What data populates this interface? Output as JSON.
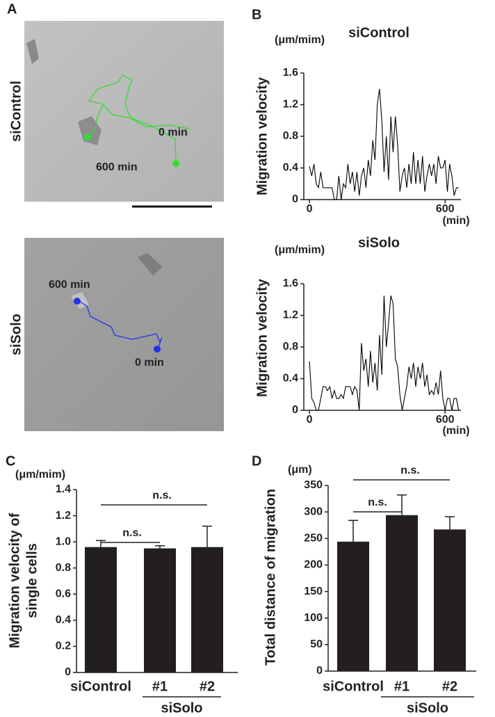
{
  "panel_a": {
    "letter": "A",
    "rows": [
      {
        "label": "siControl",
        "start": "0 min",
        "end": "600 min"
      },
      {
        "label": "siSolo",
        "start": "0 min",
        "end": "600 min"
      }
    ]
  },
  "chart_data": [
    {
      "type": "line",
      "panel": "B",
      "title": "siControl",
      "ylabel": "Migration velocity",
      "yunit": "(μm/mim)",
      "xunit": "(min)",
      "color": "#000000",
      "xlim": [
        -25,
        670
      ],
      "xticks": [
        0,
        600
      ],
      "ylim": [
        0,
        1.6
      ],
      "yticks": [
        0,
        0.4,
        0.8,
        1.2,
        1.6
      ],
      "x": [
        0,
        10,
        20,
        30,
        40,
        50,
        60,
        70,
        80,
        90,
        100,
        110,
        120,
        130,
        140,
        150,
        160,
        170,
        180,
        190,
        200,
        210,
        220,
        230,
        240,
        250,
        260,
        270,
        280,
        290,
        300,
        310,
        320,
        330,
        340,
        350,
        360,
        370,
        380,
        390,
        400,
        410,
        420,
        430,
        440,
        450,
        460,
        470,
        480,
        490,
        500,
        510,
        520,
        530,
        540,
        550,
        560,
        570,
        580,
        590,
        600,
        610,
        620,
        630,
        640,
        650,
        660
      ],
      "values": [
        0.42,
        0.3,
        0.45,
        0.2,
        0.15,
        0.35,
        0.15,
        0.15,
        0.15,
        0.15,
        0.15,
        0,
        0,
        0.3,
        0,
        0.2,
        0.15,
        0.45,
        0.2,
        0.35,
        0.1,
        0.35,
        0.05,
        0.3,
        0.4,
        0.15,
        0.5,
        0.3,
        0.75,
        0.5,
        1.2,
        1.4,
        1.0,
        0.35,
        0.8,
        0.25,
        1.05,
        0.6,
        1.05,
        0.7,
        0.1,
        0.3,
        0.4,
        0.15,
        0.45,
        0.2,
        0.6,
        0.2,
        0.5,
        0.2,
        0.55,
        0.1,
        0.3,
        0.45,
        0.3,
        0.45,
        0.2,
        0.55,
        0.4,
        0.4,
        0.5,
        0.1,
        0.45,
        0.3,
        0.05,
        0.15,
        0.15
      ]
    },
    {
      "type": "line",
      "title": "siSolo",
      "ylabel": "Migration velocity",
      "yunit": "(μm/mim)",
      "xunit": "(min)",
      "color": "#000000",
      "xlim": [
        -25,
        670
      ],
      "xticks": [
        0,
        600
      ],
      "ylim": [
        0,
        1.6
      ],
      "yticks": [
        0,
        0.4,
        0.8,
        1.2,
        1.6
      ],
      "x": [
        0,
        10,
        20,
        30,
        40,
        50,
        60,
        70,
        80,
        90,
        100,
        110,
        120,
        130,
        140,
        150,
        160,
        170,
        180,
        190,
        200,
        210,
        220,
        230,
        240,
        250,
        260,
        270,
        280,
        290,
        300,
        310,
        320,
        330,
        340,
        350,
        360,
        370,
        380,
        390,
        400,
        410,
        420,
        430,
        440,
        450,
        460,
        470,
        480,
        490,
        500,
        510,
        520,
        530,
        540,
        550,
        560,
        570,
        580,
        590,
        600,
        610,
        620,
        630,
        640,
        650,
        660
      ],
      "values": [
        0.62,
        0.15,
        0.1,
        0,
        0,
        0.15,
        0.3,
        0.3,
        0.25,
        0.3,
        0.15,
        0.25,
        0.15,
        0.15,
        0.2,
        0.15,
        0.3,
        0.3,
        0.3,
        0.2,
        0.3,
        0.25,
        0,
        0.85,
        0.5,
        0.65,
        0.3,
        0.75,
        0.35,
        0.6,
        0.25,
        0.95,
        0.45,
        1.45,
        0.8,
        1.1,
        1.45,
        1.35,
        0.65,
        0.55,
        0.2,
        0,
        0.15,
        0.3,
        0.55,
        0.4,
        0.6,
        0.3,
        0.55,
        0.4,
        0.6,
        0.3,
        0.45,
        0.2,
        0.25,
        0.2,
        0.35,
        0.2,
        0.5,
        0.15,
        0,
        0.15,
        0.15,
        0,
        0.15,
        0.15,
        0
      ]
    },
    {
      "type": "bar",
      "panel": "C",
      "ylabel": [
        "Migration velocity of",
        "single cells"
      ],
      "yunit": "(μm/mim)",
      "color": "#231f20",
      "categories": [
        "siControl",
        "#1",
        "#2"
      ],
      "group_label": "siSolo",
      "values": [
        0.96,
        0.95,
        0.96
      ],
      "errors": [
        0.05,
        0.02,
        0.16
      ],
      "ylim": [
        0,
        1.4
      ],
      "yticks": [
        0,
        0.2,
        0.4,
        0.6,
        0.8,
        {
          "value": 1,
          "label": "1.0"
        },
        1.2,
        1.4
      ],
      "annotations": [
        "n.s.",
        "n.s."
      ]
    },
    {
      "type": "bar",
      "panel": "D",
      "ylabel": [
        "Total distance of  migration"
      ],
      "yunit": "(μm)",
      "color": "#231f20",
      "categories": [
        "siControl",
        "#1",
        "#2"
      ],
      "group_label": "siSolo",
      "values": [
        244,
        294,
        267
      ],
      "errors": [
        40,
        38,
        24
      ],
      "ylim": [
        0,
        350
      ],
      "yticks": [
        0,
        50,
        100,
        150,
        200,
        250,
        300,
        350
      ],
      "annotations": [
        "n.s.",
        "n.s."
      ]
    }
  ]
}
